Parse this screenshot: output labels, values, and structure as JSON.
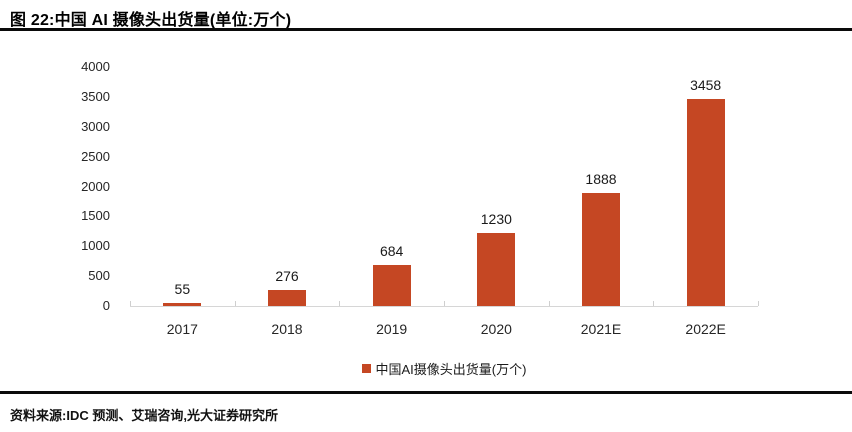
{
  "header": {
    "title": "图 22:中国 AI 摄像头出货量(单位:万个)"
  },
  "chart_data": {
    "type": "bar",
    "categories": [
      "2017",
      "2018",
      "2019",
      "2020",
      "2021E",
      "2022E"
    ],
    "values": [
      55,
      276,
      684,
      1230,
      1888,
      3458
    ],
    "title": "中国 AI 摄像头出货量",
    "xlabel": "",
    "ylabel": "",
    "unit": "万个",
    "ylim": [
      0,
      4000
    ],
    "yticks": [
      0,
      500,
      1000,
      1500,
      2000,
      2500,
      3000,
      3500,
      4000
    ],
    "grid": false,
    "bar_color": "#c54723",
    "axis_color": "#d6d6d6",
    "legend_position": "bottom",
    "legend": [
      {
        "label": "中国AI摄像头出货量(万个)",
        "color": "#c54723"
      }
    ]
  },
  "footer": {
    "source": "资料来源:IDC 预测、艾瑞咨询,光大证券研究所"
  }
}
